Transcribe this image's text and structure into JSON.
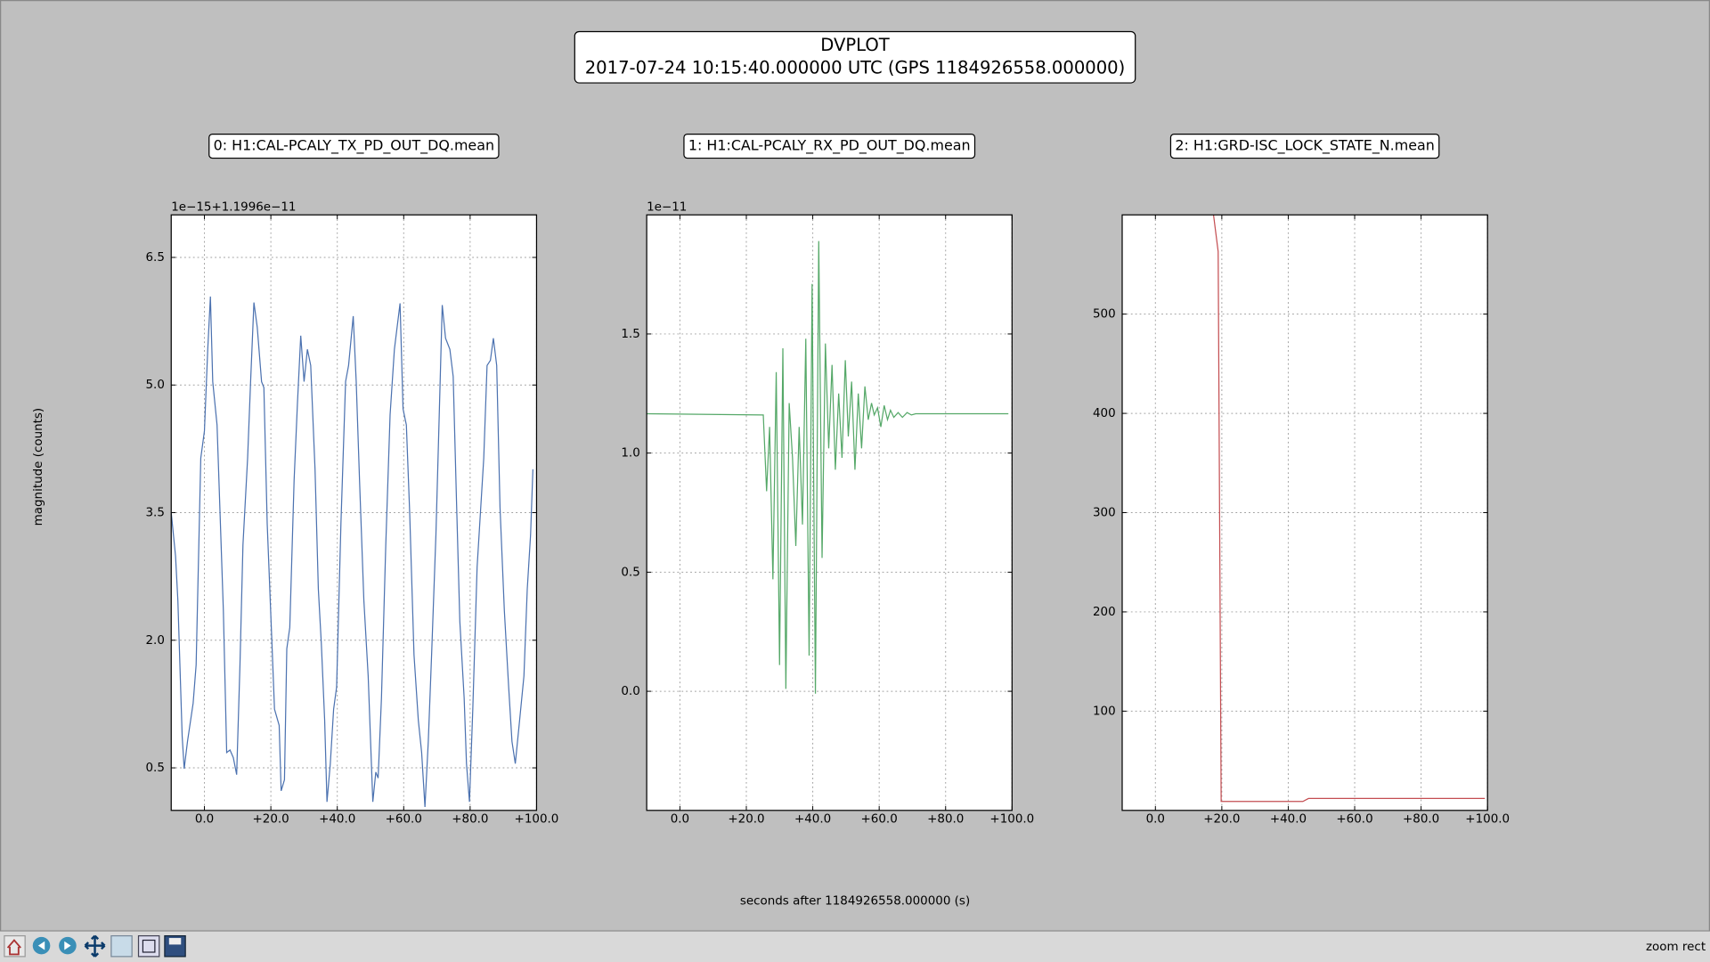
{
  "figure": {
    "title": "DVPLOT",
    "subtitle": "2017-07-24 10:15:40.000000 UTC (GPS 1184926558.000000)",
    "xlabel": "seconds after 1184926558.000000 (s)",
    "ylabel": "magnitude (counts)"
  },
  "toolbar": {
    "status": "zoom rect"
  },
  "chart_data": [
    {
      "type": "line",
      "title": "0: H1:CAL-PCALY_TX_PD_OUT_DQ.mean",
      "offset_label": "1e−15+1.1996e−11",
      "color": "#4c72b0",
      "grid": true,
      "xlim": [
        -10,
        100
      ],
      "xticks": [
        {
          "value": 0,
          "label": "0.0"
        },
        {
          "value": 20,
          "label": "+20.0"
        },
        {
          "value": 40,
          "label": "+40.0"
        },
        {
          "value": 60,
          "label": "+60.0"
        },
        {
          "value": 80,
          "label": "+80.0"
        },
        {
          "value": 100,
          "label": "+100.0"
        }
      ],
      "ylim": [
        0,
        7
      ],
      "yticks": [
        0.5,
        {
          "value": 2,
          "label": "2.0"
        },
        3.5,
        {
          "value": 5,
          "label": "5.0"
        },
        6.5
      ],
      "x": [
        -10,
        -8.7,
        -8.0,
        -6.7,
        -6.1,
        -5.1,
        -3.4,
        -2.5,
        -1.1,
        0,
        1.0,
        1.8,
        2.5,
        3.8,
        5.7,
        6.7,
        7.7,
        8.7,
        9.7,
        10.7,
        11.6,
        13.0,
        13.9,
        14.9,
        15.9,
        17.2,
        17.9,
        18.9,
        20.2,
        21.1,
        22.5,
        23.1,
        24.1,
        24.8,
        25.7,
        27.0,
        28.0,
        29.0,
        30.0,
        31.0,
        32.0,
        33.3,
        34.3,
        35.2,
        36.2,
        36.9,
        37.9,
        38.9,
        39.8,
        41.1,
        42.5,
        43.4,
        44.8,
        45.7,
        46.7,
        48.0,
        49.3,
        50.7,
        51.6,
        52.3,
        53.3,
        54.6,
        55.9,
        57.2,
        58.9,
        59.8,
        60.8,
        61.8,
        63.1,
        64.4,
        65.4,
        66.4,
        67.4,
        68.4,
        69.7,
        70.7,
        71.6,
        72.6,
        73.9,
        74.9,
        75.9,
        76.9,
        78.2,
        78.9,
        79.8,
        80.8,
        82.1,
        84.1,
        85.1,
        86.1,
        87.0,
        88.0,
        89.0,
        90.3,
        91.6,
        92.6,
        93.6,
        94.9,
        96.2,
        97.2,
        98.2,
        98.9
      ],
      "values": [
        3.5,
        2.99,
        2.47,
        0.87,
        0.49,
        0.81,
        1.26,
        1.71,
        4.14,
        4.46,
        5.42,
        6.04,
        5.04,
        4.53,
        2.35,
        0.68,
        0.71,
        0.62,
        0.42,
        1.71,
        3.12,
        4.14,
        5.04,
        5.97,
        5.68,
        5.04,
        4.97,
        3.37,
        2.09,
        1.19,
        1.0,
        0.23,
        0.36,
        1.9,
        2.15,
        3.88,
        4.78,
        5.58,
        5.04,
        5.42,
        5.23,
        4.01,
        2.6,
        1.96,
        1.06,
        0.1,
        0.55,
        1.19,
        1.45,
        3.37,
        5.04,
        5.23,
        5.81,
        5.04,
        3.88,
        2.47,
        1.58,
        0.1,
        0.45,
        0.38,
        1.32,
        3.12,
        4.65,
        5.42,
        5.96,
        4.72,
        4.53,
        3.5,
        1.83,
        1.06,
        0.68,
        0.04,
        0.81,
        1.83,
        3.24,
        4.65,
        5.94,
        5.55,
        5.42,
        5.1,
        3.63,
        2.22,
        1.32,
        0.55,
        0.1,
        1.19,
        2.86,
        4.14,
        5.23,
        5.29,
        5.55,
        5.23,
        3.56,
        2.35,
        1.45,
        0.81,
        0.55,
        1.06,
        1.58,
        2.6,
        3.24,
        4.01
      ]
    },
    {
      "type": "line",
      "title": "1: H1:CAL-PCALY_RX_PD_OUT_DQ.mean",
      "offset_label": "1e−11",
      "color": "#55a868",
      "grid": true,
      "xlim": [
        -10,
        100
      ],
      "xticks": [
        {
          "value": 0,
          "label": "0.0"
        },
        {
          "value": 20,
          "label": "+20.0"
        },
        {
          "value": 40,
          "label": "+40.0"
        },
        {
          "value": 60,
          "label": "+60.0"
        },
        {
          "value": 80,
          "label": "+80.0"
        },
        {
          "value": 100,
          "label": "+100.0"
        }
      ],
      "ylim": [
        -0.5,
        2.0
      ],
      "yticks": [
        {
          "value": 0,
          "label": "0.0"
        },
        0.5,
        {
          "value": 1,
          "label": "1.0"
        },
        1.5
      ],
      "x": [
        -10,
        25.1,
        26.1,
        27.0,
        28.0,
        29.0,
        30.0,
        31.0,
        31.9,
        32.9,
        33.9,
        34.9,
        35.9,
        36.9,
        37.9,
        38.9,
        39.8,
        40.8,
        41.8,
        42.8,
        43.8,
        44.8,
        45.8,
        46.8,
        47.8,
        48.8,
        49.8,
        50.7,
        51.7,
        52.7,
        53.7,
        54.7,
        55.7,
        56.7,
        57.7,
        58.5,
        59.5,
        60.5,
        61.5,
        62.5,
        63.4,
        64.4,
        65.7,
        67.0,
        68.4,
        69.7,
        71.0,
        98.9
      ],
      "values": [
        1.165,
        1.16,
        0.84,
        1.11,
        0.47,
        1.34,
        0.11,
        1.44,
        0.01,
        1.21,
        0.98,
        0.61,
        1.11,
        0.7,
        1.48,
        0.15,
        1.71,
        -0.01,
        1.89,
        0.56,
        1.46,
        1.02,
        1.37,
        0.93,
        1.25,
        0.98,
        1.39,
        1.07,
        1.3,
        0.93,
        1.25,
        1.02,
        1.28,
        1.14,
        1.21,
        1.16,
        1.19,
        1.11,
        1.2,
        1.14,
        1.18,
        1.15,
        1.17,
        1.15,
        1.17,
        1.16,
        1.165,
        1.165
      ]
    },
    {
      "type": "line",
      "title": "2: H1:GRD-ISC_LOCK_STATE_N.mean",
      "color": "#c44e52",
      "grid": true,
      "xlim": [
        -10,
        100
      ],
      "xticks": [
        {
          "value": 0,
          "label": "0.0"
        },
        {
          "value": 20,
          "label": "+20.0"
        },
        {
          "value": 40,
          "label": "+40.0"
        },
        {
          "value": 60,
          "label": "+60.0"
        },
        {
          "value": 80,
          "label": "+80.0"
        },
        {
          "value": 100,
          "label": "+100.0"
        }
      ],
      "ylim": [
        0,
        600
      ],
      "yticks": [
        100,
        200,
        300,
        400,
        500
      ],
      "x": [
        17.5,
        18.9,
        19.8,
        44.4,
        46.1,
        99.2
      ],
      "values": [
        600,
        563,
        9,
        9,
        12,
        12
      ]
    }
  ]
}
